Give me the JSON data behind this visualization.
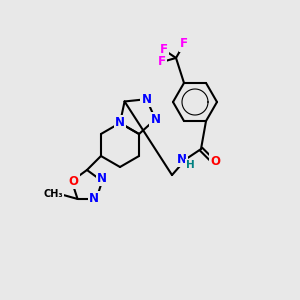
{
  "background_color": "#e8e8e8",
  "atom_colors": {
    "C": "#000000",
    "N": "#0000ff",
    "O": "#ff0000",
    "F": "#ff00ff",
    "H": "#008080"
  },
  "bond_color": "#000000",
  "figsize": [
    3.0,
    3.0
  ],
  "dpi": 100
}
